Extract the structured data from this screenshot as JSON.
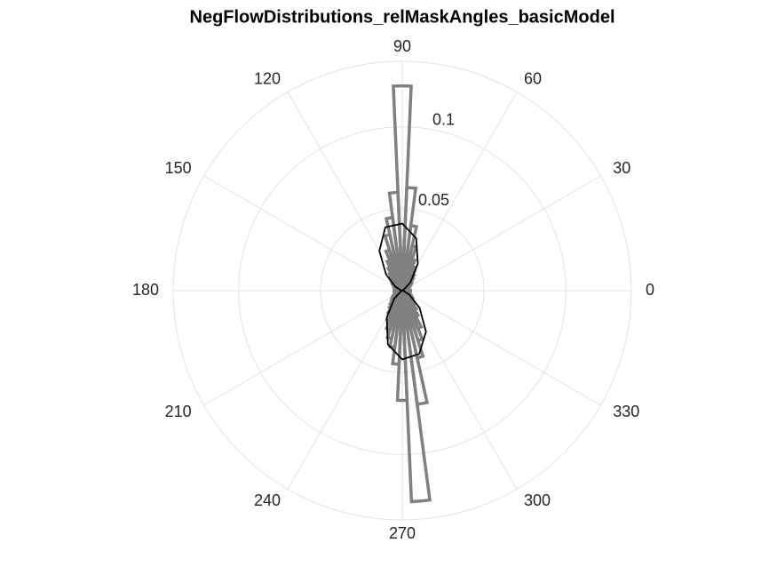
{
  "chart_data": {
    "type": "polar_histogram",
    "title": "NegFlowDistributions_relMaskAngles_basicModel",
    "bins": [
      -2.5,
      2.5,
      7.5,
      12.5,
      17.5,
      22.5,
      27.5,
      32.5,
      37.5,
      42.5,
      47.5,
      52.5,
      57.5,
      62.5,
      67.5,
      72.5,
      77.5,
      82.5,
      87.5,
      92.5,
      97.5,
      102.5,
      107.5,
      112.5,
      117.5,
      122.5,
      127.5,
      132.5,
      137.5,
      142.5,
      147.5,
      152.5,
      157.5,
      162.5,
      167.5,
      172.5,
      177.5,
      182.5,
      187.5,
      192.5,
      197.5,
      202.5,
      207.5,
      212.5,
      217.5,
      222.5,
      227.5,
      232.5,
      237.5,
      242.5,
      247.5,
      252.5,
      257.5,
      262.5,
      267.5,
      272.5,
      277.5,
      282.5,
      287.5,
      292.5,
      297.5,
      302.5,
      307.5,
      312.5,
      317.5,
      322.5,
      327.5,
      332.5,
      337.5,
      342.5,
      347.5,
      352.5,
      357.5
    ],
    "values": [
      0.005,
      0.004,
      0.003,
      0.003,
      0.004,
      0.004,
      0.005,
      0.006,
      0.007,
      0.008,
      0.01,
      0.012,
      0.014,
      0.016,
      0.02,
      0.028,
      0.04,
      0.063,
      0.125,
      0.06,
      0.045,
      0.035,
      0.026,
      0.02,
      0.016,
      0.013,
      0.011,
      0.009,
      0.008,
      0.007,
      0.006,
      0.005,
      0.004,
      0.004,
      0.004,
      0.005,
      0.005,
      0.005,
      0.004,
      0.004,
      0.004,
      0.005,
      0.006,
      0.007,
      0.008,
      0.009,
      0.011,
      0.013,
      0.016,
      0.02,
      0.025,
      0.03,
      0.035,
      0.045,
      0.067,
      0.129,
      0.07,
      0.042,
      0.032,
      0.025,
      0.018,
      0.014,
      0.011,
      0.009,
      0.008,
      0.007,
      0.006,
      0.005,
      0.005,
      0.004,
      0.004,
      0.004
    ],
    "color": "#808080",
    "fit": {
      "color": "#000000",
      "theta": [
        0,
        15,
        30,
        45,
        60,
        75,
        90,
        105,
        120,
        135,
        150,
        165,
        180,
        195,
        210,
        225,
        240,
        255,
        270,
        285,
        300,
        315,
        330,
        345
      ],
      "r": [
        0,
        0,
        0.001,
        0.007,
        0.019,
        0.033,
        0.041,
        0.04,
        0.028,
        0.014,
        0.005,
        0.001,
        0,
        0,
        0.001,
        0.007,
        0.019,
        0.034,
        0.042,
        0.04,
        0.029,
        0.015,
        0.005,
        0.001
      ]
    },
    "rlim": [
      0,
      0.14
    ],
    "rticks": [
      0.05,
      0.1
    ],
    "rtick_angle": 80,
    "thetaticks": [
      0,
      30,
      60,
      90,
      120,
      150,
      180,
      210,
      240,
      270,
      300,
      330
    ],
    "grid": true
  }
}
